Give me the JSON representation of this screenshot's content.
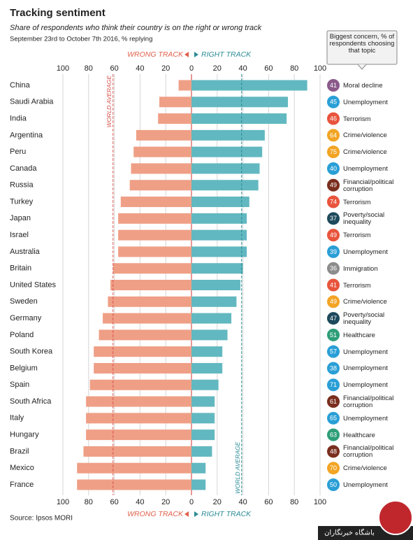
{
  "chart_data": {
    "type": "diverging-bar",
    "title": "Tracking sentiment",
    "subtitle": "Share of respondents who think their country is on the right or wrong track",
    "note": "September 23rd to October 7th 2016, % replying",
    "source": "Source: Ipsos MORI",
    "categories": [
      "China",
      "Saudi Arabia",
      "India",
      "Argentina",
      "Peru",
      "Canada",
      "Russia",
      "Turkey",
      "Japan",
      "Israel",
      "Australia",
      "Britain",
      "United States",
      "Sweden",
      "Germany",
      "Poland",
      "South Korea",
      "Belgium",
      "Spain",
      "South Africa",
      "Italy",
      "Hungary",
      "Brazil",
      "Mexico",
      "France"
    ],
    "series": [
      {
        "name": "WRONG TRACK",
        "color": "#ef9f86",
        "values": [
          10,
          25,
          26,
          43,
          45,
          47,
          48,
          55,
          57,
          57,
          57,
          61,
          63,
          65,
          69,
          72,
          76,
          76,
          79,
          82,
          82,
          82,
          84,
          89,
          89
        ]
      },
      {
        "name": "RIGHT TRACK",
        "color": "#62b8c0",
        "values": [
          90,
          75,
          74,
          57,
          55,
          53,
          52,
          45,
          43,
          43,
          43,
          40,
          38,
          35,
          31,
          28,
          24,
          24,
          21,
          18,
          18,
          18,
          16,
          11,
          11
        ]
      }
    ],
    "xlim": [
      0,
      100
    ],
    "xticks": [
      0,
      20,
      40,
      60,
      80,
      100
    ],
    "grid": true,
    "world_average": {
      "label": "WORLD AVERAGE",
      "wrong": 61,
      "right": 39
    },
    "concerns": {
      "title": "Biggest concern, % of respondents choosing that topic",
      "values": [
        41,
        45,
        46,
        64,
        75,
        40,
        49,
        74,
        37,
        49,
        39,
        36,
        41,
        49,
        47,
        51,
        57,
        38,
        71,
        61,
        65,
        63,
        48,
        70,
        50
      ],
      "topics": [
        "Moral decline",
        "Unemployment",
        "Terrorism",
        "Crime/violence",
        "Crime/violence",
        "Unemployment",
        "Financial/political corruption",
        "Terrorism",
        "Poverty/social inequality",
        "Terrorism",
        "Unemployment",
        "Immigration",
        "Terrorism",
        "Crime/violence",
        "Poverty/social inequality",
        "Healthcare",
        "Unemployment",
        "Unemployment",
        "Unemployment",
        "Financial/political corruption",
        "Unemployment",
        "Healthcare",
        "Financial/political corruption",
        "Crime/violence",
        "Unemployment"
      ],
      "colors": [
        "#8a5a8a",
        "#2a9fd6",
        "#e8543c",
        "#f2a424",
        "#f2a424",
        "#2a9fd6",
        "#7a2e1e",
        "#e8543c",
        "#1e4a5c",
        "#e8543c",
        "#2a9fd6",
        "#8c8c8c",
        "#e8543c",
        "#f2a424",
        "#1e4a5c",
        "#2e9e78",
        "#2a9fd6",
        "#2a9fd6",
        "#2a9fd6",
        "#7a2e1e",
        "#2a9fd6",
        "#2e9e78",
        "#7a2e1e",
        "#f2a424",
        "#2a9fd6"
      ]
    }
  },
  "watermark": "باشگاه خبرنگاران"
}
